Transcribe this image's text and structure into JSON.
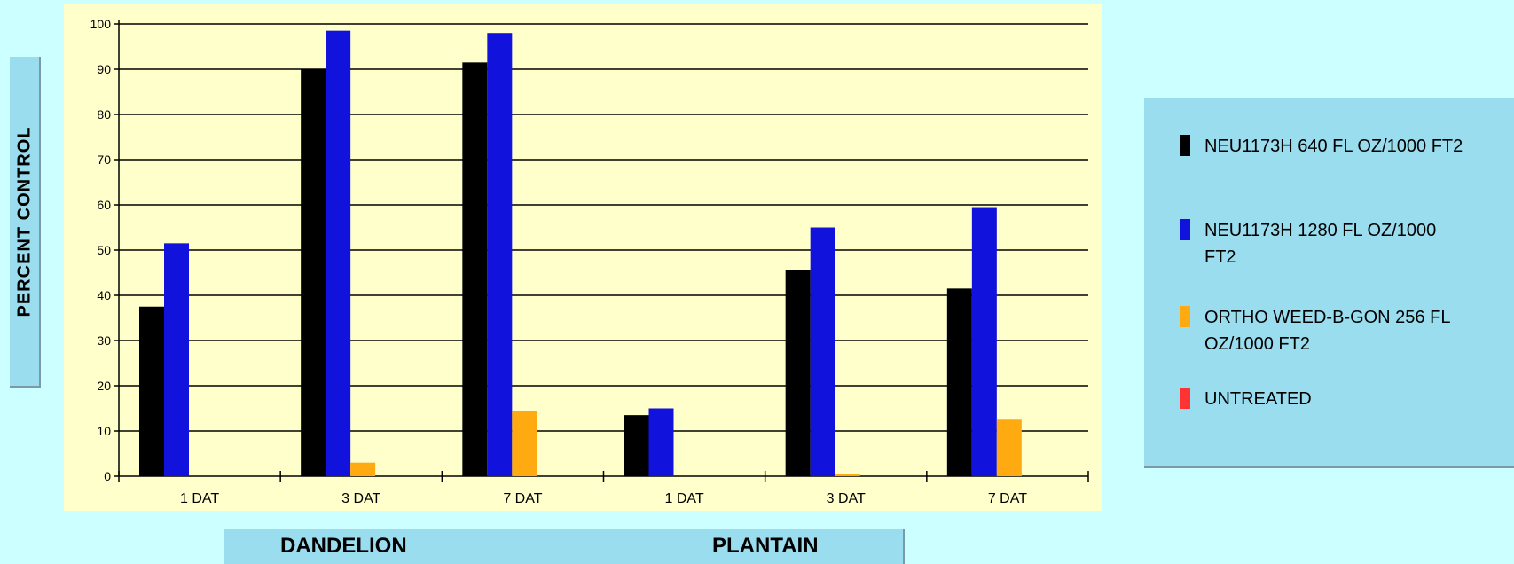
{
  "chart_data": {
    "type": "bar",
    "ylabel": "PERCENT CONTROL",
    "ylim": [
      0,
      100
    ],
    "yticks": [
      0,
      10,
      20,
      30,
      40,
      50,
      60,
      70,
      80,
      90,
      100
    ],
    "categories": [
      "1 DAT",
      "3 DAT",
      "7 DAT",
      "1 DAT",
      "3 DAT",
      "7 DAT"
    ],
    "groups": [
      "DANDELION",
      "PLANTAIN"
    ],
    "grid": true,
    "legend_position": "right",
    "series": [
      {
        "name": "NEU1173H 640 FL OZ/1000 FT2",
        "color": "#000000",
        "values": [
          37.5,
          90,
          91.5,
          13.5,
          45.5,
          41.5
        ]
      },
      {
        "name": "NEU1173H 1280 FL OZ/1000 FT2",
        "color": "#1212dd",
        "values": [
          51.5,
          98.5,
          98,
          15,
          55,
          59.5
        ]
      },
      {
        "name": "ORTHO WEED-B-GON 256 FL OZ/1000 FT2",
        "color": "#ffaa11",
        "values": [
          0,
          3,
          14.5,
          0,
          0.5,
          12.5
        ]
      },
      {
        "name": "UNTREATED",
        "color": "#ff3333",
        "values": [
          0,
          0,
          0,
          0,
          0,
          0
        ]
      }
    ]
  }
}
